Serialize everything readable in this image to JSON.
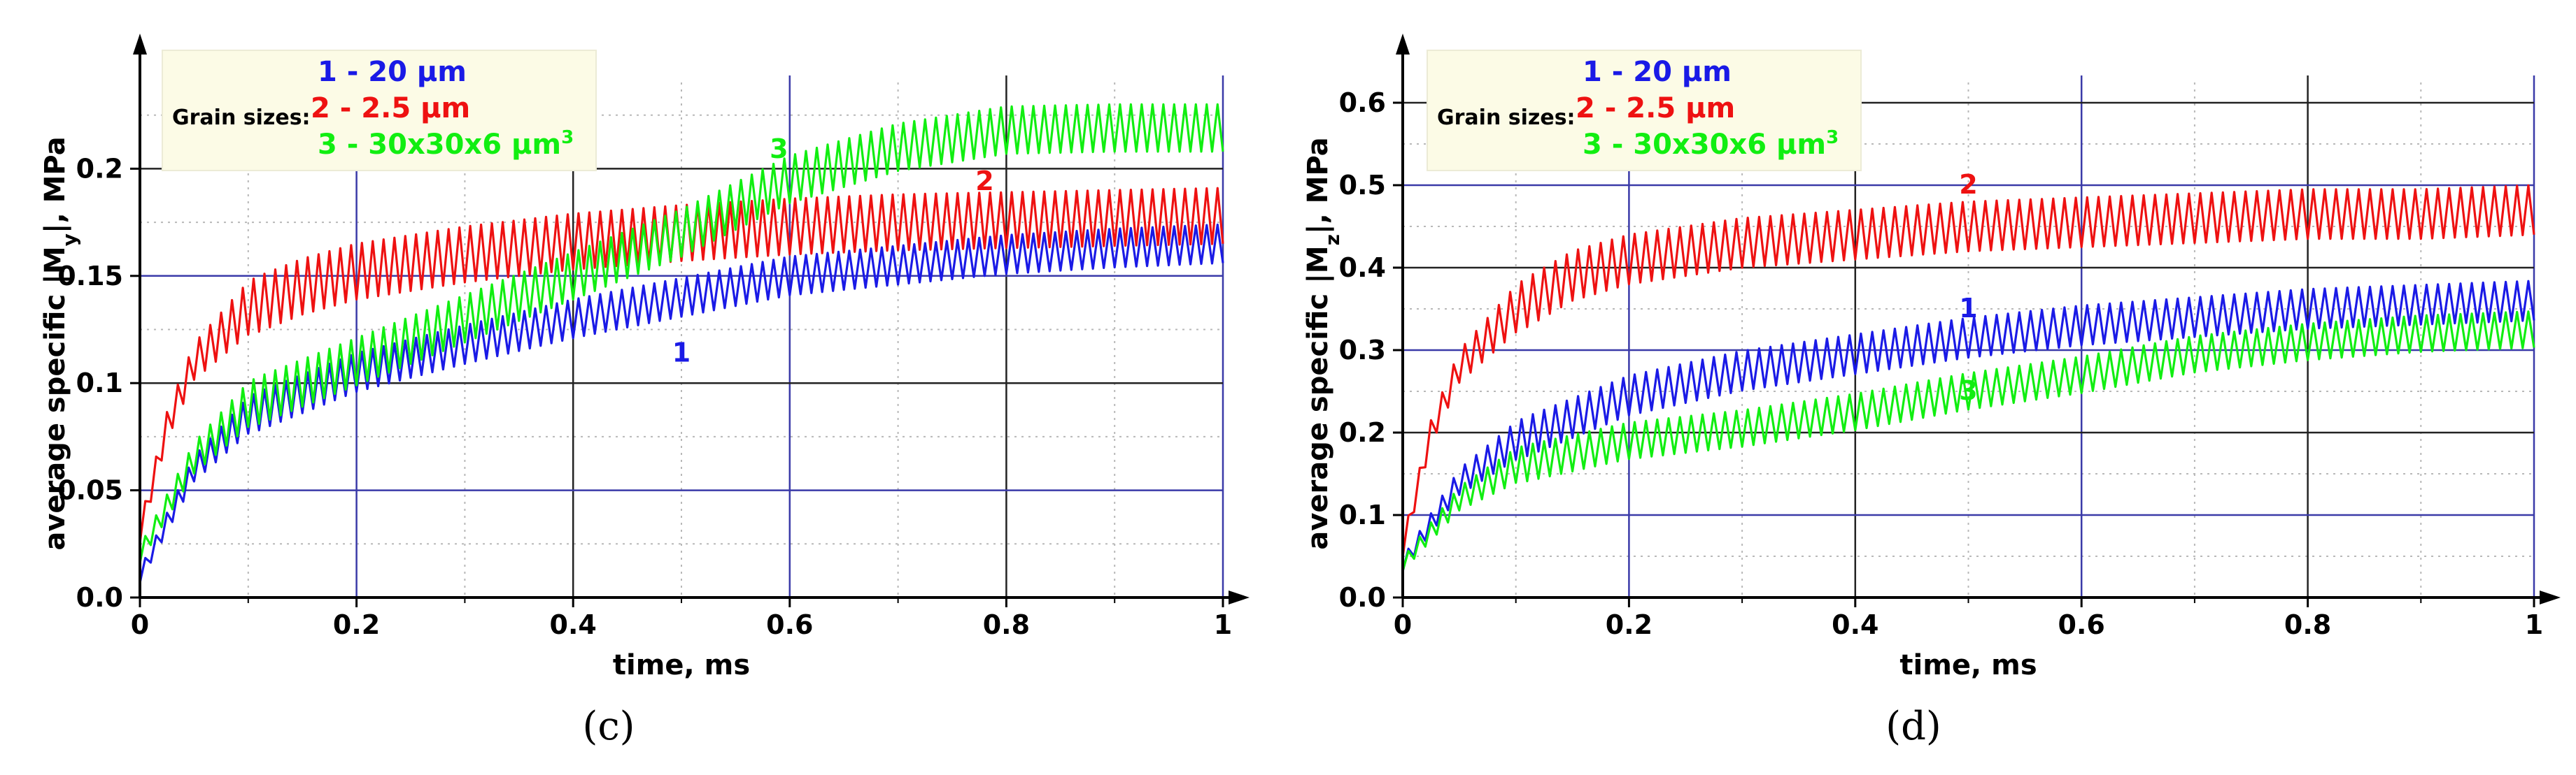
{
  "chart_data": [
    {
      "type": "line",
      "panel_label": "(c)",
      "xlabel": "time, ms",
      "ylabel_parts": [
        "average specific |M",
        "y",
        "|, MPa"
      ],
      "xlim": [
        0,
        1
      ],
      "ylim": [
        0,
        0.25
      ],
      "x_ticks": [
        "0",
        "0.2",
        "0.4",
        "0.6",
        "0.8",
        "1"
      ],
      "y_ticks": [
        "0.0",
        "0.05",
        "0.1",
        "0.15",
        "0.2"
      ],
      "legend": {
        "title": "Grain sizes:",
        "entries": [
          {
            "num": "1",
            "text": "1 - 20 μm",
            "color": "#1a1ae6"
          },
          {
            "num": "2",
            "text": "2 - 2.5 μm",
            "color": "#ee1111"
          },
          {
            "num": "3",
            "text": "3 - 30x30x6 μm",
            "sup": "3",
            "color": "#11ee11"
          }
        ]
      },
      "series": [
        {
          "name": "1",
          "color": "#1a1ae6",
          "oscillation_amplitude": 0.009,
          "x": [
            0,
            0.05,
            0.1,
            0.2,
            0.3,
            0.4,
            0.5,
            0.6,
            0.7,
            0.8,
            0.9,
            1.0
          ],
          "y": [
            0.01,
            0.06,
            0.085,
            0.105,
            0.118,
            0.13,
            0.14,
            0.15,
            0.155,
            0.16,
            0.163,
            0.165
          ],
          "label": "1",
          "label_at": [
            0.5,
            0.11
          ]
        },
        {
          "name": "2",
          "color": "#ee1111",
          "oscillation_amplitude": 0.013,
          "x": [
            0,
            0.025,
            0.05,
            0.1,
            0.15,
            0.2,
            0.3,
            0.4,
            0.5,
            0.6,
            0.7,
            0.8,
            0.9,
            1.0
          ],
          "y": [
            0.03,
            0.08,
            0.11,
            0.135,
            0.145,
            0.152,
            0.16,
            0.166,
            0.17,
            0.173,
            0.175,
            0.176,
            0.177,
            0.178
          ],
          "label": "2",
          "label_at": [
            0.78,
            0.19
          ]
        },
        {
          "name": "3",
          "color": "#11ee11",
          "oscillation_amplitude": 0.011,
          "x": [
            0,
            0.05,
            0.1,
            0.2,
            0.3,
            0.4,
            0.5,
            0.6,
            0.7,
            0.8,
            0.9,
            1.0
          ],
          "y": [
            0.02,
            0.065,
            0.09,
            0.11,
            0.13,
            0.15,
            0.17,
            0.195,
            0.21,
            0.218,
            0.219,
            0.219
          ],
          "label": "3",
          "label_at": [
            0.59,
            0.205
          ]
        }
      ]
    },
    {
      "type": "line",
      "panel_label": "(d)",
      "xlabel": "time, ms",
      "ylabel_parts": [
        "average specific |M",
        "z",
        "|, MPa"
      ],
      "xlim": [
        0,
        1
      ],
      "ylim": [
        0,
        0.65
      ],
      "x_ticks": [
        "0",
        "0.2",
        "0.4",
        "0.6",
        "0.8",
        "1"
      ],
      "y_ticks": [
        "0.0",
        "0.1",
        "0.2",
        "0.3",
        "0.4",
        "0.5",
        "0.6"
      ],
      "legend": {
        "title": "Grain sizes:",
        "entries": [
          {
            "num": "1",
            "text": "1 - 20 μm",
            "color": "#1a1ae6"
          },
          {
            "num": "2",
            "text": "2 - 2.5 μm",
            "color": "#ee1111"
          },
          {
            "num": "3",
            "text": "3 - 30x30x6 μm",
            "sup": "3",
            "color": "#11ee11"
          }
        ]
      },
      "series": [
        {
          "name": "1",
          "color": "#1a1ae6",
          "oscillation_amplitude": 0.024,
          "x": [
            0,
            0.05,
            0.1,
            0.2,
            0.3,
            0.4,
            0.5,
            0.6,
            0.7,
            0.8,
            0.9,
            1.0
          ],
          "y": [
            0.04,
            0.14,
            0.19,
            0.245,
            0.275,
            0.295,
            0.315,
            0.33,
            0.34,
            0.35,
            0.355,
            0.36
          ],
          "label": "1",
          "label_at": [
            0.5,
            0.34
          ]
        },
        {
          "name": "2",
          "color": "#ee1111",
          "oscillation_amplitude": 0.03,
          "x": [
            0,
            0.025,
            0.05,
            0.1,
            0.15,
            0.2,
            0.3,
            0.4,
            0.5,
            0.6,
            0.7,
            0.8,
            0.9,
            1.0
          ],
          "y": [
            0.06,
            0.2,
            0.28,
            0.35,
            0.39,
            0.41,
            0.43,
            0.44,
            0.45,
            0.455,
            0.46,
            0.465,
            0.465,
            0.47
          ],
          "label": "2",
          "label_at": [
            0.5,
            0.49
          ]
        },
        {
          "name": "3",
          "color": "#11ee11",
          "oscillation_amplitude": 0.022,
          "x": [
            0,
            0.05,
            0.1,
            0.2,
            0.3,
            0.4,
            0.5,
            0.6,
            0.7,
            0.8,
            0.9,
            1.0
          ],
          "y": [
            0.04,
            0.12,
            0.16,
            0.19,
            0.205,
            0.225,
            0.25,
            0.27,
            0.295,
            0.31,
            0.32,
            0.325
          ],
          "label": "3",
          "label_at": [
            0.5,
            0.24
          ]
        }
      ]
    }
  ]
}
